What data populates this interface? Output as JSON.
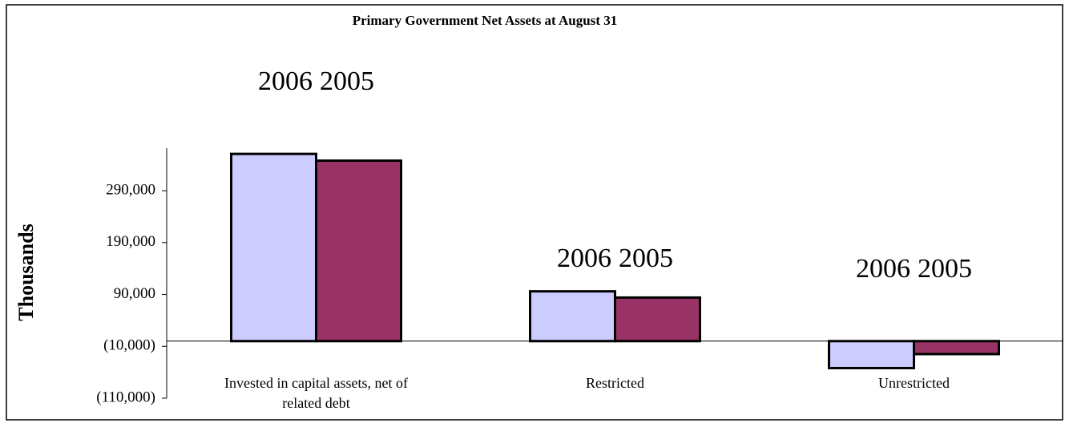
{
  "chart_data": {
    "type": "bar",
    "title": "Primary Government Net Assets at August 31",
    "ylabel": "Thousands",
    "categories": [
      "Invested in capital assets, net of related debt",
      "Restricted",
      "Unrestricted"
    ],
    "series": [
      {
        "name": "2006",
        "color": "#ccccff",
        "values": [
          361000,
          96000,
          -52000
        ]
      },
      {
        "name": "2005",
        "color": "#993366",
        "values": [
          348000,
          84000,
          -25000
        ]
      }
    ],
    "ylim": [
      -110000,
      372000
    ],
    "yticks": [
      {
        "value": -110000,
        "label": "(110,000)"
      },
      {
        "value": -10000,
        "label": "(10,000)"
      },
      {
        "value": 90000,
        "label": "90,000"
      },
      {
        "value": 190000,
        "label": "190,000"
      },
      {
        "value": 290000,
        "label": "290,000"
      }
    ]
  }
}
